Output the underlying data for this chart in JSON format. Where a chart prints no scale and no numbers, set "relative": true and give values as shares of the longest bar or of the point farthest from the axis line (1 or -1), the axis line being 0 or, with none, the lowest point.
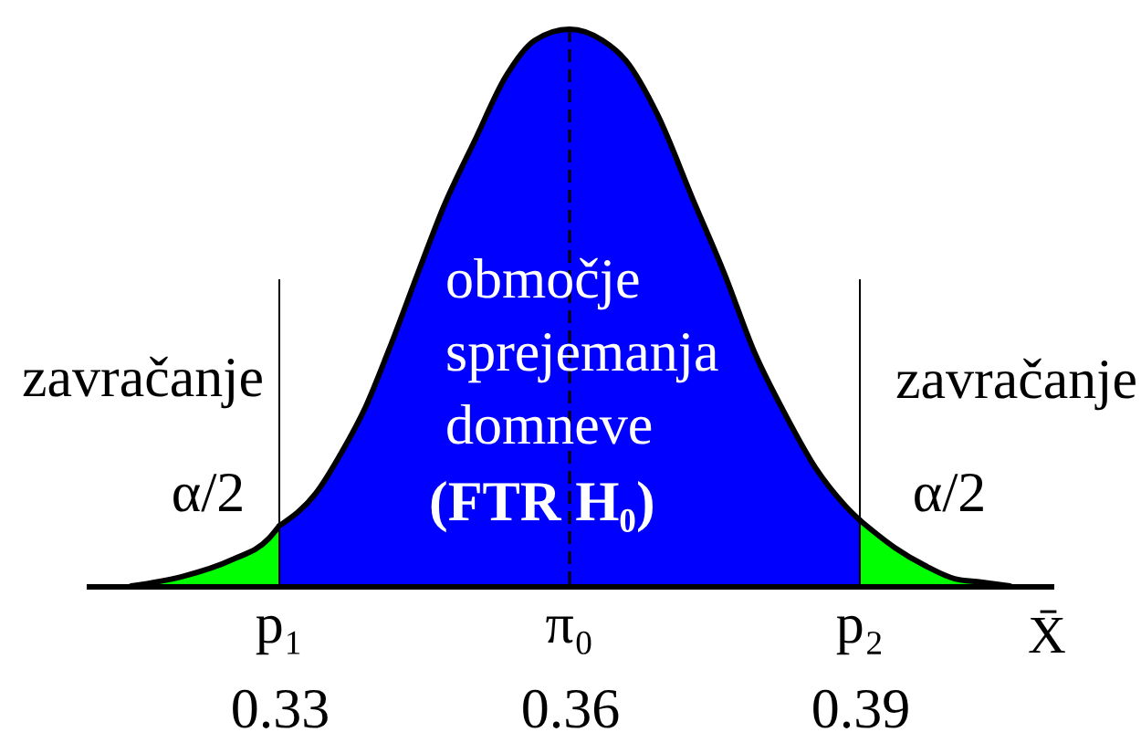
{
  "chart_data": {
    "type": "area",
    "relative": true,
    "xlim": [
      0.31,
      0.41
    ],
    "xticks": [
      0.33,
      0.36,
      0.39
    ],
    "xlabel": "X̄",
    "tick_labels": "x",
    "grid": false,
    "series": [
      {
        "color": "#00ff00",
        "x": [
          0.3147,
          0.32,
          0.3251,
          0.3289,
          0.33
        ],
        "values": [
          0,
          0.017,
          0.047,
          0.085,
          0.108
        ]
      },
      {
        "color": "#0000ff",
        "x": [
          0.33,
          0.3338,
          0.3364,
          0.3389,
          0.3413,
          0.3445,
          0.347,
          0.3502,
          0.3534,
          0.3564,
          0.36,
          0.3634,
          0.3658,
          0.3691,
          0.3728,
          0.376,
          0.3791,
          0.3823,
          0.3855,
          0.3885,
          0.39
        ],
        "values": [
          0.108,
          0.167,
          0.239,
          0.321,
          0.423,
          0.57,
          0.682,
          0.8,
          0.915,
          0.98,
          1,
          0.98,
          0.944,
          0.846,
          0.692,
          0.561,
          0.42,
          0.308,
          0.21,
          0.144,
          0.118
        ]
      },
      {
        "color": "#00ff00",
        "x": [
          0.39,
          0.3936,
          0.3968,
          0.3998,
          0.4025,
          0.4055
        ],
        "values": [
          0.118,
          0.069,
          0.036,
          0.013,
          0.007,
          0
        ]
      }
    ],
    "ref_lines": [
      {
        "axis": "x",
        "value": 0.33,
        "color": "#000000",
        "label": "p₁"
      },
      {
        "axis": "x",
        "value": 0.39,
        "color": "#000000",
        "label": "p₂"
      },
      {
        "axis": "x",
        "value": 0.36,
        "color": "#000000",
        "line_style": "dashed",
        "label": "π₀"
      }
    ],
    "annotations": [
      "zavračanje",
      "α/2",
      "območje sprejemanja domneve",
      "(FTR H₀)",
      "zavračanje",
      "α/2"
    ]
  }
}
